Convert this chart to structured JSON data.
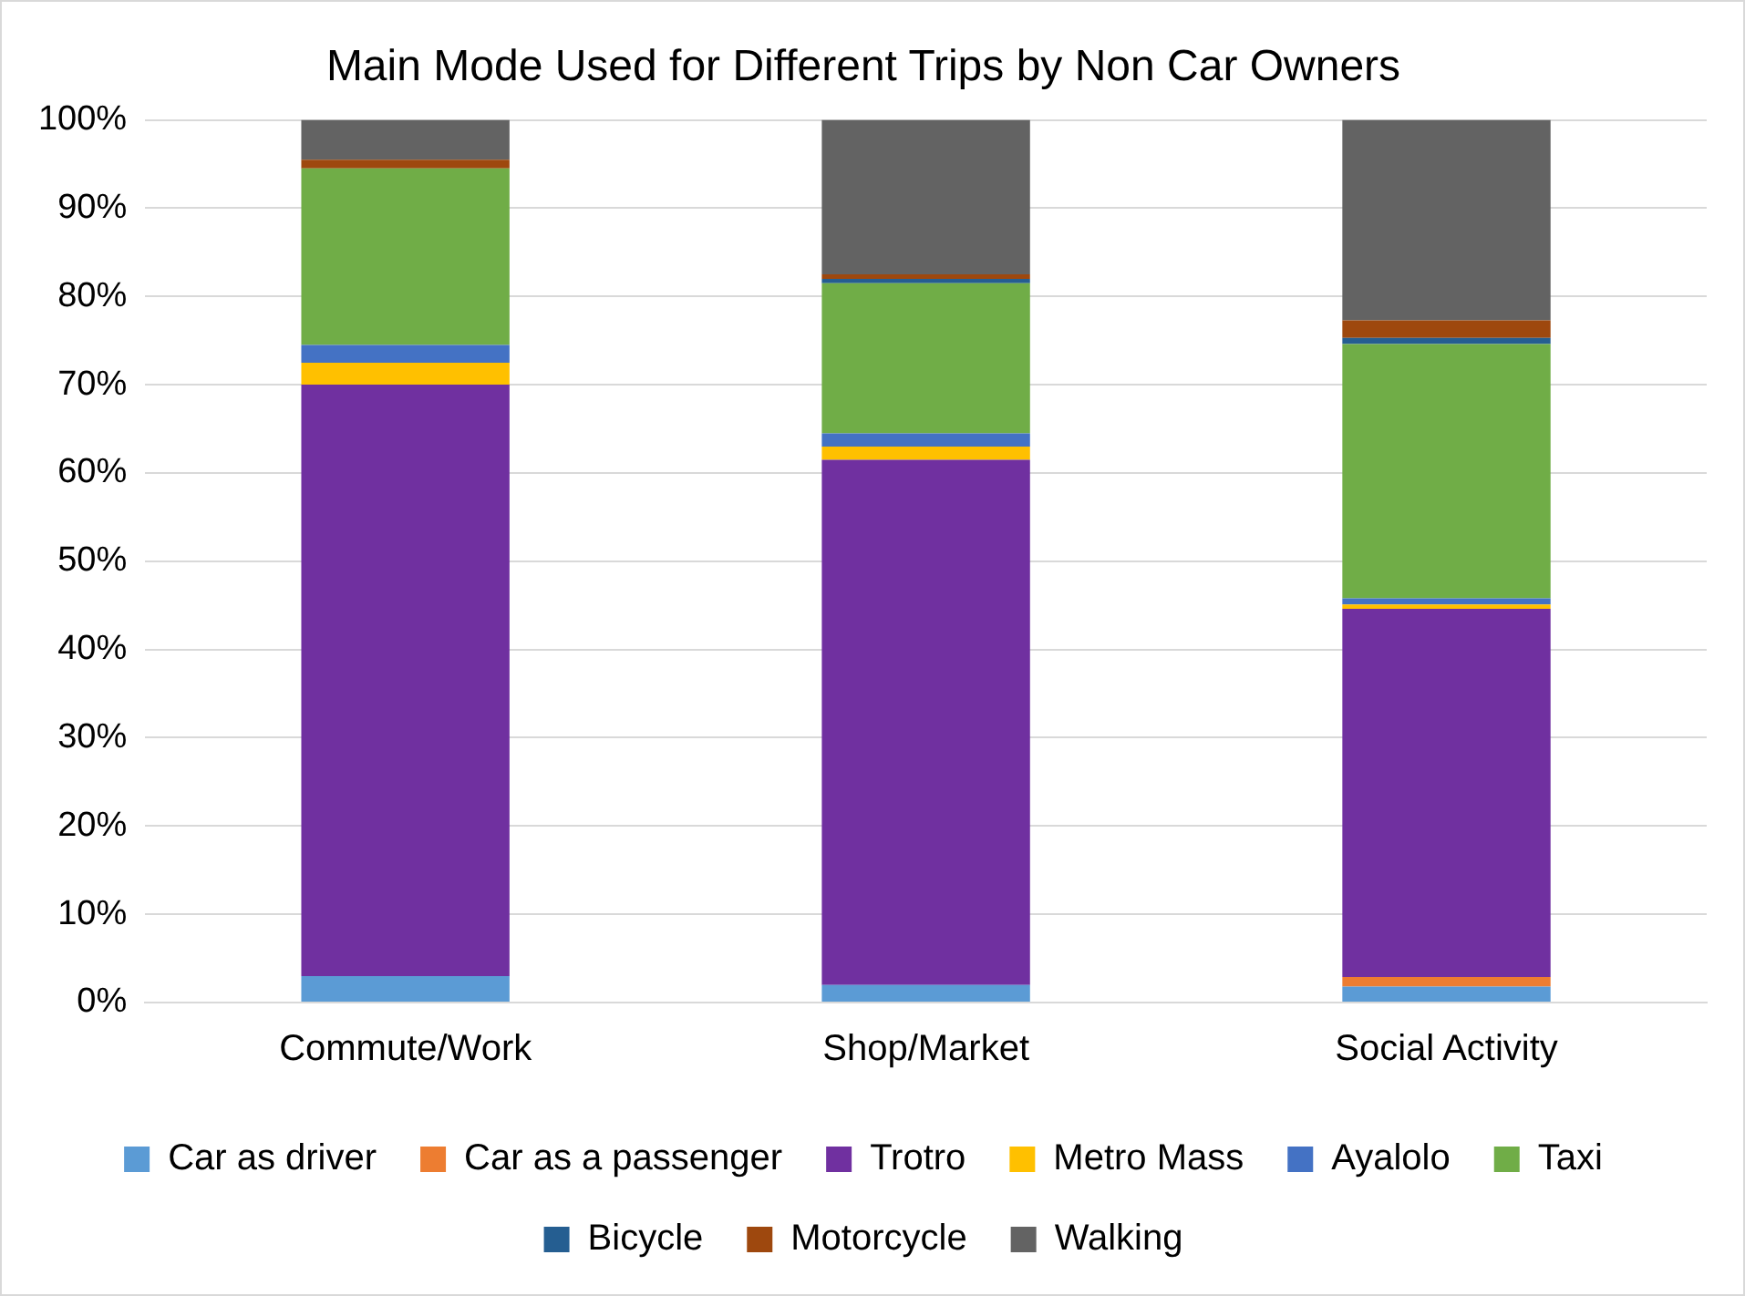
{
  "chart_data": {
    "type": "bar",
    "stacked": true,
    "title": "Main Mode Used for Different Trips by Non Car Owners",
    "categories": [
      "Commute/Work",
      "Shop/Market",
      "Social Activity"
    ],
    "series": [
      {
        "name": "Car as driver",
        "color": "#5b9bd5",
        "values": [
          3,
          2,
          1.8
        ]
      },
      {
        "name": "Car as a passenger",
        "color": "#ed7d31",
        "values": [
          0,
          0,
          1.1
        ]
      },
      {
        "name": "Trotro",
        "color": "#7030a0",
        "values": [
          67,
          59.5,
          41.7
        ]
      },
      {
        "name": "Metro Mass",
        "color": "#ffc000",
        "values": [
          2.5,
          1.5,
          0.5
        ]
      },
      {
        "name": "Ayalolo",
        "color": "#4472c4",
        "values": [
          2,
          1.5,
          0.7
        ]
      },
      {
        "name": "Taxi",
        "color": "#70ad47",
        "values": [
          20,
          17,
          28.8
        ]
      },
      {
        "name": "Bicycle",
        "color": "#255e91",
        "values": [
          0,
          0.5,
          0.7
        ]
      },
      {
        "name": "Motorcycle",
        "color": "#9e480e",
        "values": [
          1,
          0.5,
          2
        ]
      },
      {
        "name": "Walking",
        "color": "#636363",
        "values": [
          4.5,
          17.5,
          22.7
        ]
      }
    ],
    "ylim": [
      0,
      100
    ],
    "yticks": [
      {
        "value": 0,
        "label": "0%"
      },
      {
        "value": 10,
        "label": "10%"
      },
      {
        "value": 20,
        "label": "20%"
      },
      {
        "value": 30,
        "label": "30%"
      },
      {
        "value": 40,
        "label": "40%"
      },
      {
        "value": 50,
        "label": "50%"
      },
      {
        "value": 60,
        "label": "60%"
      },
      {
        "value": 70,
        "label": "70%"
      },
      {
        "value": 80,
        "label": "80%"
      },
      {
        "value": 90,
        "label": "90%"
      },
      {
        "value": 100,
        "label": "100%"
      }
    ],
    "grid": "y",
    "legend": "bottom"
  }
}
